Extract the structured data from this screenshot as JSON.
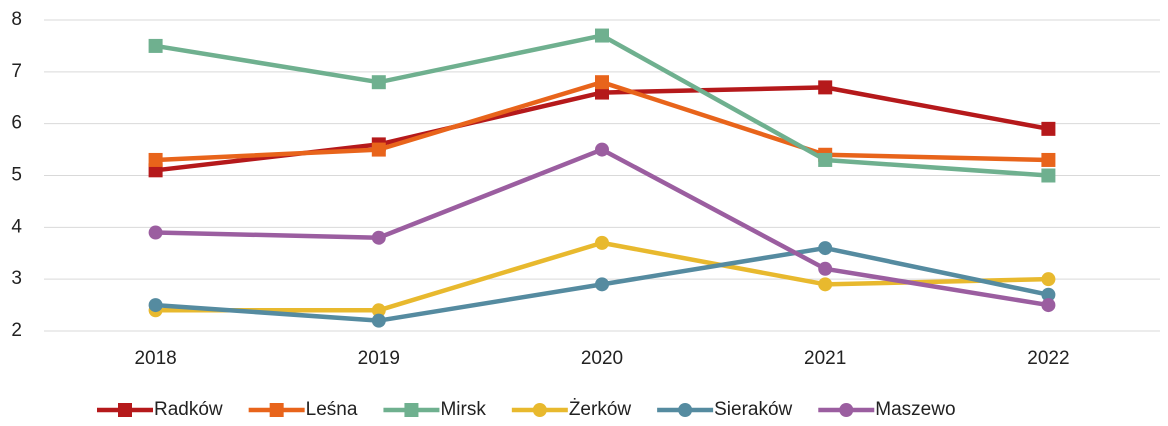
{
  "chart_data": {
    "type": "line",
    "categories": [
      "2018",
      "2019",
      "2020",
      "2021",
      "2022"
    ],
    "series": [
      {
        "name": "Radków",
        "color": "#b5191b",
        "marker": "square",
        "values": [
          5.1,
          5.6,
          6.6,
          6.7,
          5.9
        ]
      },
      {
        "name": "Leśna",
        "color": "#e8641b",
        "marker": "square",
        "values": [
          5.3,
          5.5,
          6.8,
          5.4,
          5.3
        ]
      },
      {
        "name": "Mirsk",
        "color": "#6fb08f",
        "marker": "square",
        "values": [
          7.5,
          6.8,
          7.7,
          5.3,
          5.0
        ]
      },
      {
        "name": "Żerków",
        "color": "#e8b92e",
        "marker": "circle",
        "values": [
          2.4,
          2.4,
          3.7,
          2.9,
          3.0
        ]
      },
      {
        "name": "Sieraków",
        "color": "#558ba0",
        "marker": "circle",
        "values": [
          2.5,
          2.2,
          2.9,
          3.6,
          2.7
        ]
      },
      {
        "name": "Maszewo",
        "color": "#9b5ea0",
        "marker": "circle",
        "values": [
          3.9,
          3.8,
          5.5,
          3.2,
          2.5
        ]
      }
    ],
    "ylim": [
      2,
      8
    ],
    "yticks": [
      2,
      3,
      4,
      5,
      6,
      7,
      8
    ],
    "grid": true,
    "legend": "bottom"
  }
}
